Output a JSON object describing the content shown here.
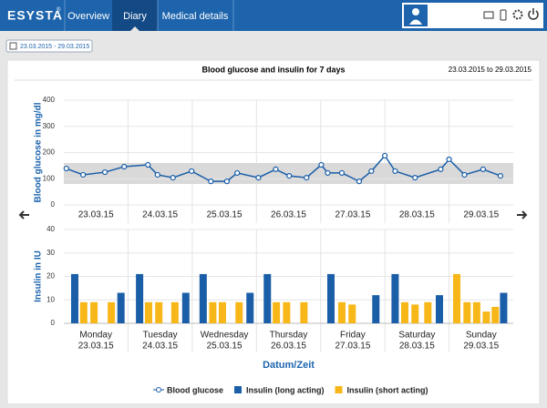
{
  "header": {
    "logo": "ESYSTA",
    "logo_mark": "®",
    "nav": [
      "Overview",
      "Diary",
      "Medical details"
    ]
  },
  "date_button": "23.03.2015 - 29.03.2015",
  "panel": {
    "title": "Blood glucose and insulin for 7 days",
    "range": "23.03.2015 to 29.03.2015"
  },
  "chart_data": [
    {
      "type": "line",
      "y_label": "Blood glucose in mg/dl",
      "xlim": [
        0,
        7
      ],
      "ylim": [
        0,
        400
      ],
      "yticks": [
        0,
        100,
        200,
        300,
        400
      ],
      "grid": true,
      "target_range": [
        80,
        160
      ],
      "xticks": [
        {
          "value": 0.5,
          "label": "23.03.15"
        },
        {
          "value": 1.5,
          "label": "24.03.15"
        },
        {
          "value": 2.5,
          "label": "25.03.15"
        },
        {
          "value": 3.5,
          "label": "26.03.15"
        },
        {
          "value": 4.5,
          "label": "27.03.15"
        },
        {
          "value": 5.5,
          "label": "28.03.15"
        },
        {
          "value": 6.5,
          "label": "29.03.15"
        }
      ],
      "series": [
        {
          "name": "Blood glucose",
          "color": "#1a5ea8",
          "x": [
            0.04,
            0.3,
            0.64,
            0.94,
            1.31,
            1.46,
            1.7,
            1.99,
            2.29,
            2.54,
            2.7,
            3.03,
            3.3,
            3.51,
            3.78,
            4.01,
            4.11,
            4.33,
            4.6,
            4.79,
            5.0,
            5.16,
            5.47,
            5.87,
            6.0,
            6.24,
            6.53,
            6.8
          ],
          "values": [
            139,
            115,
            125,
            146,
            153,
            115,
            104,
            129,
            90,
            90,
            122,
            104,
            136,
            111,
            104,
            153,
            122,
            122,
            90,
            129,
            188,
            129,
            104,
            136,
            174,
            115,
            136,
            111
          ]
        }
      ]
    },
    {
      "type": "bar",
      "y_label": "Insulin in IU",
      "x_label": "Datum/Zeit",
      "xlim": [
        0,
        7
      ],
      "ylim": [
        0,
        40
      ],
      "yticks": [
        0,
        10,
        20,
        30,
        40
      ],
      "grid": true,
      "categories": [
        "Monday",
        "Tuesday",
        "Wednesday",
        "Thursday",
        "Friday",
        "Saturday",
        "Sunday"
      ],
      "dates": [
        "23.03.15",
        "24.03.15",
        "25.03.15",
        "26.03.15",
        "27.03.15",
        "28.03.15",
        "29.03.15"
      ],
      "series": [
        {
          "name": "Insulin (long acting)",
          "color": "#1a5ea8",
          "x": [
            0.17,
            0.89,
            1.18,
            1.9,
            2.17,
            2.9,
            3.17,
            4.16,
            4.86,
            5.16,
            5.85,
            6.85
          ],
          "values": [
            21,
            13,
            21,
            13,
            21,
            13,
            21,
            21,
            12,
            21,
            12,
            13
          ]
        },
        {
          "name": "Insulin (short acting)",
          "color": "#f7b718",
          "x": [
            0.31,
            0.47,
            0.74,
            1.32,
            1.48,
            1.73,
            2.32,
            2.47,
            2.73,
            3.31,
            3.47,
            3.74,
            4.33,
            4.49,
            5.31,
            5.47,
            5.67,
            6.12,
            6.28,
            6.43,
            6.58,
            6.72
          ],
          "values": [
            9,
            9,
            9,
            9,
            9,
            9,
            9,
            9,
            9,
            9,
            9,
            9,
            9,
            8,
            9,
            8,
            9,
            21,
            9,
            9,
            5,
            7
          ]
        }
      ]
    }
  ]
}
